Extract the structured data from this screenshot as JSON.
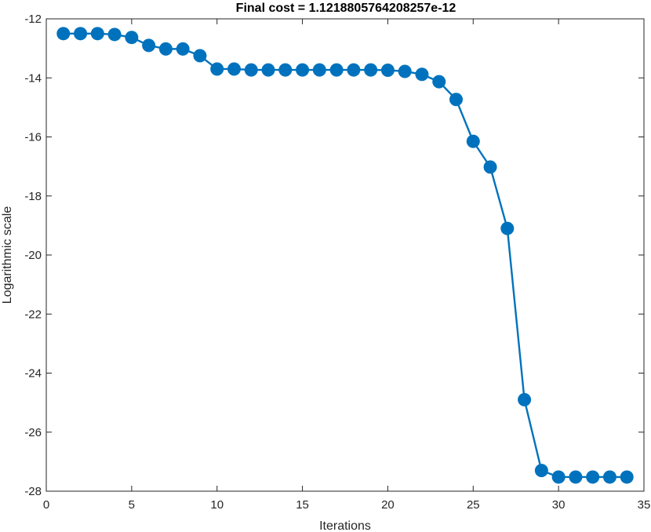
{
  "chart_data": {
    "type": "line",
    "title": "Final cost = 1.1218805764208257e-12",
    "xlabel": "Iterations",
    "ylabel": "Logarithmic scale",
    "xlim": [
      0,
      35
    ],
    "ylim": [
      -28,
      -12
    ],
    "xticks": [
      0,
      5,
      10,
      15,
      20,
      25,
      30,
      35
    ],
    "yticks": [
      -12,
      -14,
      -16,
      -18,
      -20,
      -22,
      -24,
      -26,
      -28
    ],
    "grid": false,
    "box": true,
    "line_color": "#0072BD",
    "series": [
      {
        "x": [
          1,
          2,
          3,
          4,
          5,
          6,
          7,
          8,
          9,
          10,
          11,
          12,
          13,
          14,
          15,
          16,
          17,
          18,
          19,
          20,
          21,
          22,
          23,
          24,
          25,
          26,
          27,
          28,
          29,
          30,
          31,
          32,
          33,
          34
        ],
        "values": [
          -12.5,
          -12.5,
          -12.5,
          -12.53,
          -12.63,
          -12.9,
          -13.02,
          -13.02,
          -13.25,
          -13.7,
          -13.7,
          -13.73,
          -13.73,
          -13.73,
          -13.73,
          -13.73,
          -13.73,
          -13.73,
          -13.73,
          -13.74,
          -13.78,
          -13.88,
          -14.13,
          -14.73,
          -16.15,
          -17.02,
          -19.1,
          -24.9,
          -27.3,
          -27.52,
          -27.52,
          -27.52,
          -27.52,
          -27.52
        ]
      }
    ]
  }
}
